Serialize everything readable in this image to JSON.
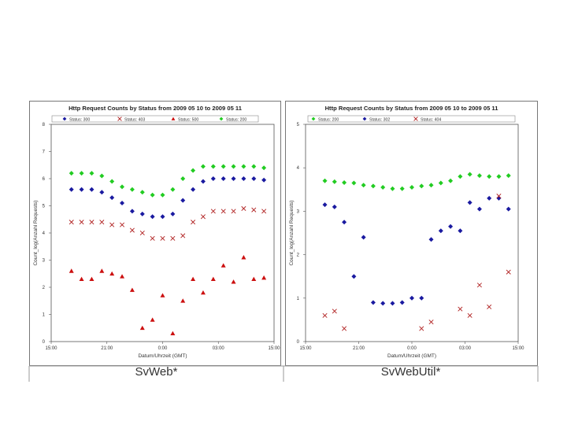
{
  "captions": [
    "SvWeb*",
    "SvWebUtil*"
  ],
  "chart_data": [
    {
      "type": "scatter",
      "title": "Http Request Counts by Status from 2009 05 10 to 2009 05 11",
      "xlabel": "Datum/Uhrzeit (GMT)",
      "ylabel": "Count_log(Anzahl Requests)",
      "x_ticks": [
        "15:00",
        "21:00",
        "0:00",
        "03:00",
        "15:00"
      ],
      "y_ticks": [
        "0",
        "1",
        "2",
        "3",
        "4",
        "5",
        "6",
        "7",
        "8"
      ],
      "xlim": [
        0,
        22
      ],
      "ylim": [
        0,
        8
      ],
      "x": [
        2,
        3,
        4,
        5,
        6,
        7,
        8,
        9,
        10,
        11,
        12,
        13,
        14,
        15,
        16,
        17,
        18,
        19,
        20,
        21
      ],
      "series": [
        {
          "name": "Status: 300",
          "marker": "diamond",
          "color": "#1a1aa0",
          "values": [
            5.6,
            5.6,
            5.6,
            5.5,
            5.3,
            5.1,
            4.8,
            4.7,
            4.6,
            4.6,
            4.7,
            5.2,
            5.6,
            5.9,
            6.0,
            6.0,
            6.0,
            6.0,
            6.0,
            5.95
          ]
        },
        {
          "name": "Status: 403",
          "marker": "x",
          "color": "#b02020",
          "values": [
            4.4,
            4.4,
            4.4,
            4.4,
            4.3,
            4.3,
            4.1,
            4.0,
            3.8,
            3.8,
            3.8,
            3.9,
            4.4,
            4.6,
            4.8,
            4.8,
            4.8,
            4.9,
            4.85,
            4.8
          ]
        },
        {
          "name": "Status: 500",
          "marker": "triangle",
          "color": "#cc1010",
          "values": [
            2.6,
            2.3,
            2.3,
            2.6,
            2.5,
            2.4,
            1.9,
            0.5,
            0.8,
            1.7,
            0.3,
            1.5,
            2.3,
            1.8,
            2.3,
            2.8,
            2.2,
            3.1,
            2.3,
            2.35
          ]
        },
        {
          "name": "Status: 200",
          "marker": "diamond",
          "color": "#22cc22",
          "values": [
            6.2,
            6.2,
            6.2,
            6.1,
            5.9,
            5.7,
            5.6,
            5.5,
            5.4,
            5.4,
            5.6,
            6.0,
            6.3,
            6.45,
            6.45,
            6.45,
            6.45,
            6.45,
            6.45,
            6.4
          ]
        }
      ]
    },
    {
      "type": "scatter",
      "title": "Http Request Counts by Status from 2009 05 10 to 2009 05 11",
      "xlabel": "Datum/Uhrzeit (GMT)",
      "ylabel": "Count_log(Anzahl Requests)",
      "x_ticks": [
        "15:00",
        "21:00",
        "0:00",
        "03:00",
        "15:00"
      ],
      "y_ticks": [
        "0",
        "1",
        "2",
        "3",
        "4",
        "5"
      ],
      "xlim": [
        0,
        22
      ],
      "ylim": [
        0,
        5
      ],
      "x": [
        2,
        3,
        4,
        5,
        6,
        7,
        8,
        9,
        10,
        11,
        12,
        13,
        14,
        15,
        16,
        17,
        18,
        19,
        20,
        21
      ],
      "series": [
        {
          "name": "Status: 200",
          "marker": "diamond",
          "color": "#22cc22",
          "values": [
            3.7,
            3.68,
            3.66,
            3.65,
            3.6,
            3.58,
            3.55,
            3.52,
            3.52,
            3.55,
            3.58,
            3.6,
            3.65,
            3.7,
            3.8,
            3.85,
            3.82,
            3.8,
            3.8,
            3.82
          ]
        },
        {
          "name": "Status: 302",
          "marker": "diamond",
          "color": "#1a1aa0",
          "values": [
            3.15,
            3.1,
            2.75,
            1.5,
            2.4,
            0.9,
            0.88,
            0.88,
            0.9,
            1.0,
            1.0,
            2.35,
            2.55,
            2.65,
            2.55,
            3.2,
            3.05,
            3.3,
            3.3,
            3.05
          ]
        },
        {
          "name": "Status: 404",
          "marker": "x",
          "color": "#b02020",
          "values": [
            0.6,
            0.7,
            0.3,
            null,
            null,
            null,
            null,
            null,
            null,
            null,
            0.3,
            0.45,
            null,
            null,
            0.75,
            0.6,
            1.3,
            0.8,
            3.35,
            1.6
          ]
        }
      ]
    }
  ]
}
